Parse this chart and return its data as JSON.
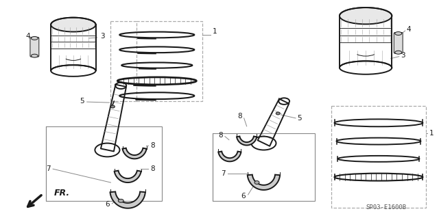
{
  "title": "",
  "bg_color": "#ffffff",
  "line_color": "#1a1a1a",
  "gray_color": "#888888",
  "dashed_color": "#aaaaaa",
  "label_color": "#000000",
  "arrow_label": "FR.",
  "part_code": "SP03-E1600B",
  "fig_width": 6.4,
  "fig_height": 3.19,
  "dpi": 100,
  "lw_thick": 1.4,
  "lw_thin": 0.7,
  "lw_dash": 0.8,
  "font_size": 7.5
}
